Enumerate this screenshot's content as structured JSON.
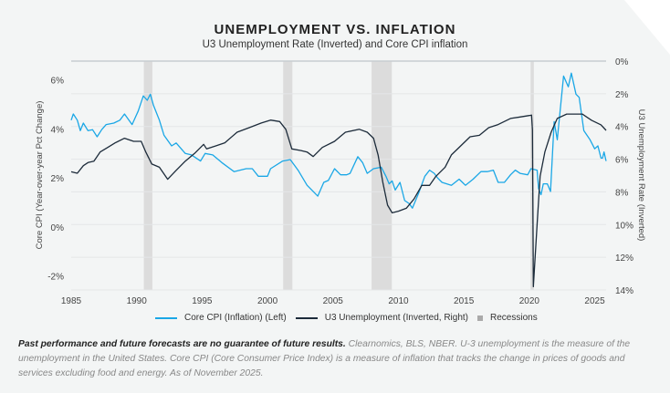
{
  "chart_data": {
    "type": "line",
    "title": "UNEMPLOYMENT VS. INFLATION",
    "subtitle": "U3 Unemployment Rate (Inverted) and Core CPI inflation",
    "xlabel": "",
    "ylabel_left": "Core CPI (Year-over-year Pct Change)",
    "ylabel_right": "U3 Unemployment Rate (Inverted)",
    "xlim": [
      1985,
      2025.87
    ],
    "ylim_left": [
      -2.57,
      6.77
    ],
    "ylim_right": [
      0,
      14
    ],
    "right_axis_inverted": true,
    "grid": "horizontal",
    "legend_placement": "bottom",
    "x_ticks": [
      "1985",
      "1990",
      "1995",
      "2000",
      "2005",
      "2010",
      "2015",
      "2020",
      "2025"
    ],
    "left_ticks": [
      {
        "v": 6,
        "label": "6%"
      },
      {
        "v": 4,
        "label": "4%"
      },
      {
        "v": 2,
        "label": "2%"
      },
      {
        "v": 0,
        "label": "0%"
      },
      {
        "v": -2,
        "label": "-2%"
      }
    ],
    "right_ticks": [
      {
        "v": 0,
        "label": "0%"
      },
      {
        "v": 2,
        "label": "2%"
      },
      {
        "v": 4,
        "label": "4%"
      },
      {
        "v": 6,
        "label": "6%"
      },
      {
        "v": 8,
        "label": "8%"
      },
      {
        "v": 10,
        "label": "10%"
      },
      {
        "v": 12,
        "label": "12%"
      },
      {
        "v": 14,
        "label": "14%"
      }
    ],
    "recessions": [
      [
        1990.55,
        1991.2
      ],
      [
        2001.2,
        2001.9
      ],
      [
        2007.95,
        2009.5
      ],
      [
        2020.1,
        2020.35
      ]
    ],
    "series": [
      {
        "name": "Core CPI (Inflation) (Left)",
        "axis": "left",
        "color": "#1aa7e6",
        "points": [
          [
            1985.0,
            4.36
          ],
          [
            1985.16,
            4.61
          ],
          [
            1985.47,
            4.36
          ],
          [
            1985.7,
            3.93
          ],
          [
            1985.93,
            4.24
          ],
          [
            1986.28,
            3.93
          ],
          [
            1986.63,
            3.97
          ],
          [
            1986.98,
            3.68
          ],
          [
            1987.33,
            3.97
          ],
          [
            1987.67,
            4.18
          ],
          [
            1988.26,
            4.24
          ],
          [
            1988.72,
            4.36
          ],
          [
            1989.07,
            4.61
          ],
          [
            1989.65,
            4.18
          ],
          [
            1990.12,
            4.73
          ],
          [
            1990.51,
            5.35
          ],
          [
            1990.81,
            5.17
          ],
          [
            1991.05,
            5.42
          ],
          [
            1991.28,
            4.98
          ],
          [
            1991.74,
            4.36
          ],
          [
            1992.09,
            3.74
          ],
          [
            1992.67,
            3.31
          ],
          [
            1993.02,
            3.43
          ],
          [
            1993.72,
            3.0
          ],
          [
            1994.19,
            2.94
          ],
          [
            1994.88,
            2.69
          ],
          [
            1995.23,
            3.0
          ],
          [
            1995.81,
            2.94
          ],
          [
            1996.51,
            2.63
          ],
          [
            1997.44,
            2.26
          ],
          [
            1998.37,
            2.38
          ],
          [
            1998.84,
            2.38
          ],
          [
            1999.3,
            2.07
          ],
          [
            2000.0,
            2.07
          ],
          [
            2000.23,
            2.38
          ],
          [
            2001.16,
            2.69
          ],
          [
            2001.74,
            2.75
          ],
          [
            2002.33,
            2.32
          ],
          [
            2003.02,
            1.7
          ],
          [
            2003.84,
            1.26
          ],
          [
            2004.3,
            1.82
          ],
          [
            2004.65,
            1.9
          ],
          [
            2005.12,
            2.38
          ],
          [
            2005.58,
            2.13
          ],
          [
            2006.05,
            2.13
          ],
          [
            2006.31,
            2.19
          ],
          [
            2006.9,
            2.87
          ],
          [
            2007.26,
            2.63
          ],
          [
            2007.62,
            2.19
          ],
          [
            2008.1,
            2.38
          ],
          [
            2008.69,
            2.44
          ],
          [
            2009.05,
            2.07
          ],
          [
            2009.29,
            1.76
          ],
          [
            2009.52,
            1.88
          ],
          [
            2009.76,
            1.51
          ],
          [
            2010.12,
            1.82
          ],
          [
            2010.48,
            1.08
          ],
          [
            2010.83,
            0.95
          ],
          [
            2011.07,
            0.77
          ],
          [
            2011.55,
            1.39
          ],
          [
            2012.02,
            2.07
          ],
          [
            2012.38,
            2.32
          ],
          [
            2012.74,
            2.19
          ],
          [
            2012.98,
            2.01
          ],
          [
            2013.33,
            1.82
          ],
          [
            2013.69,
            1.76
          ],
          [
            2014.05,
            1.7
          ],
          [
            2014.64,
            1.95
          ],
          [
            2015.12,
            1.7
          ],
          [
            2015.71,
            1.95
          ],
          [
            2016.31,
            2.26
          ],
          [
            2016.79,
            2.26
          ],
          [
            2017.26,
            2.32
          ],
          [
            2017.62,
            1.82
          ],
          [
            2018.1,
            1.82
          ],
          [
            2018.57,
            2.13
          ],
          [
            2018.93,
            2.32
          ],
          [
            2019.29,
            2.19
          ],
          [
            2019.88,
            2.13
          ],
          [
            2020.12,
            2.38
          ],
          [
            2020.6,
            2.32
          ],
          [
            2020.71,
            1.57
          ],
          [
            2020.9,
            1.32
          ],
          [
            2021.07,
            1.76
          ],
          [
            2021.38,
            1.76
          ],
          [
            2021.62,
            1.45
          ],
          [
            2021.9,
            4.3
          ],
          [
            2022.14,
            3.56
          ],
          [
            2022.62,
            6.16
          ],
          [
            2022.98,
            5.72
          ],
          [
            2023.21,
            6.28
          ],
          [
            2023.57,
            5.42
          ],
          [
            2023.81,
            5.29
          ],
          [
            2024.17,
            3.93
          ],
          [
            2024.64,
            3.56
          ],
          [
            2025.0,
            3.19
          ],
          [
            2025.24,
            3.31
          ],
          [
            2025.48,
            2.81
          ],
          [
            2025.6,
            2.81
          ],
          [
            2025.71,
            3.06
          ],
          [
            2025.87,
            2.69
          ]
        ]
      },
      {
        "name": "U3 Unemployment (Inverted, Right)",
        "axis": "right",
        "color": "#1c2b3a",
        "points": [
          [
            1985.0,
            6.77
          ],
          [
            1985.47,
            6.86
          ],
          [
            1985.93,
            6.4
          ],
          [
            1986.28,
            6.21
          ],
          [
            1986.74,
            6.12
          ],
          [
            1987.21,
            5.56
          ],
          [
            1987.79,
            5.28
          ],
          [
            1988.37,
            5.0
          ],
          [
            1989.07,
            4.72
          ],
          [
            1989.77,
            4.91
          ],
          [
            1990.35,
            4.91
          ],
          [
            1990.7,
            5.56
          ],
          [
            1991.16,
            6.3
          ],
          [
            1991.74,
            6.49
          ],
          [
            1992.37,
            7.23
          ],
          [
            1993.02,
            6.68
          ],
          [
            1993.72,
            6.12
          ],
          [
            1994.42,
            5.65
          ],
          [
            1995.12,
            5.09
          ],
          [
            1995.35,
            5.37
          ],
          [
            1996.05,
            5.19
          ],
          [
            1996.74,
            5.0
          ],
          [
            1997.67,
            4.35
          ],
          [
            1998.6,
            4.07
          ],
          [
            1999.53,
            3.79
          ],
          [
            2000.23,
            3.61
          ],
          [
            2000.93,
            3.7
          ],
          [
            2001.4,
            4.17
          ],
          [
            2001.86,
            5.37
          ],
          [
            2002.56,
            5.47
          ],
          [
            2003.02,
            5.56
          ],
          [
            2003.49,
            5.84
          ],
          [
            2004.19,
            5.28
          ],
          [
            2005.12,
            4.91
          ],
          [
            2005.95,
            4.35
          ],
          [
            2007.02,
            4.17
          ],
          [
            2007.62,
            4.35
          ],
          [
            2008.1,
            4.72
          ],
          [
            2008.45,
            5.74
          ],
          [
            2008.81,
            7.42
          ],
          [
            2009.17,
            8.81
          ],
          [
            2009.52,
            9.28
          ],
          [
            2010.0,
            9.18
          ],
          [
            2010.6,
            9.0
          ],
          [
            2011.19,
            8.44
          ],
          [
            2011.79,
            7.6
          ],
          [
            2012.38,
            7.6
          ],
          [
            2012.86,
            7.05
          ],
          [
            2013.57,
            6.49
          ],
          [
            2014.05,
            5.74
          ],
          [
            2014.76,
            5.19
          ],
          [
            2015.48,
            4.63
          ],
          [
            2016.19,
            4.54
          ],
          [
            2016.9,
            4.07
          ],
          [
            2017.62,
            3.88
          ],
          [
            2018.57,
            3.51
          ],
          [
            2019.29,
            3.42
          ],
          [
            2020.0,
            3.33
          ],
          [
            2020.17,
            3.3
          ],
          [
            2020.24,
            4.2
          ],
          [
            2020.31,
            13.8
          ],
          [
            2020.6,
            10.0
          ],
          [
            2020.83,
            7.05
          ],
          [
            2021.19,
            5.56
          ],
          [
            2021.67,
            4.35
          ],
          [
            2022.14,
            3.51
          ],
          [
            2022.86,
            3.24
          ],
          [
            2024.05,
            3.24
          ],
          [
            2024.76,
            3.62
          ],
          [
            2025.48,
            3.9
          ],
          [
            2025.87,
            4.24
          ]
        ]
      }
    ],
    "legend": {
      "recessions_label": "Recessions",
      "recession_color": "#dcdcdc"
    }
  },
  "footnote": {
    "bold": "Past performance and future forecasts are no guarantee of future results.",
    "text": " Clearnomics, BLS, NBER. U-3 unemployment is the measure of the unemployment in the United States. Core CPI (Core Consumer Price Index) is a measure of inflation that tracks the change in prices of goods and services excluding food and energy. As of November 2025."
  }
}
